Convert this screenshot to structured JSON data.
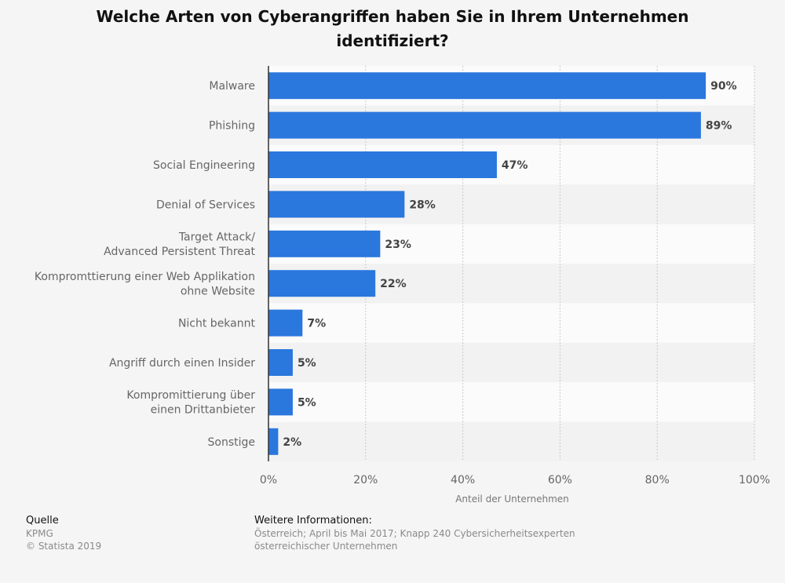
{
  "chart_data": {
    "type": "bar",
    "orientation": "horizontal",
    "title": "Welche Arten von Cyberangriffen haben Sie in Ihrem Unternehmen identifiziert?",
    "categories": [
      [
        "Malware"
      ],
      [
        "Phishing"
      ],
      [
        "Social Engineering"
      ],
      [
        "Denial of Services"
      ],
      [
        "Target Attack/",
        "Advanced Persistent Threat"
      ],
      [
        "Kompromttierung einer Web Applikation",
        "ohne Website"
      ],
      [
        "Nicht bekannt"
      ],
      [
        "Angriff durch einen Insider"
      ],
      [
        "Kompromittierung über",
        "einen Drittanbieter"
      ],
      [
        "Sonstige"
      ]
    ],
    "values": [
      90,
      89,
      47,
      28,
      23,
      22,
      7,
      5,
      5,
      2
    ],
    "value_labels": [
      "90%",
      "89%",
      "47%",
      "28%",
      "23%",
      "22%",
      "7%",
      "5%",
      "5%",
      "2%"
    ],
    "xlabel": "Anteil der Unternehmen",
    "xlim": [
      0,
      100
    ],
    "xticks": [
      0,
      20,
      40,
      60,
      80,
      100
    ],
    "xtick_labels": [
      "0%",
      "20%",
      "40%",
      "60%",
      "80%",
      "100%"
    ],
    "grid": true,
    "colors": {
      "bar": "#2a77dd",
      "band_light": "#fbfbfb",
      "band_dark": "#f2f2f2",
      "grid": "#c8c8c8",
      "axis": "#333333",
      "category_text": "#666666",
      "value_text": "#444444",
      "tick_text": "#666666",
      "xlabel_text": "#777777"
    }
  },
  "footer": {
    "source_heading": "Quelle",
    "source_lines": [
      "KPMG",
      "© Statista 2019"
    ],
    "info_heading": "Weitere Informationen:",
    "info_lines": [
      "Österreich; April bis Mai 2017; Knapp 240 Cybersicherheitsexperten",
      "österreichischer Unternehmen"
    ]
  }
}
